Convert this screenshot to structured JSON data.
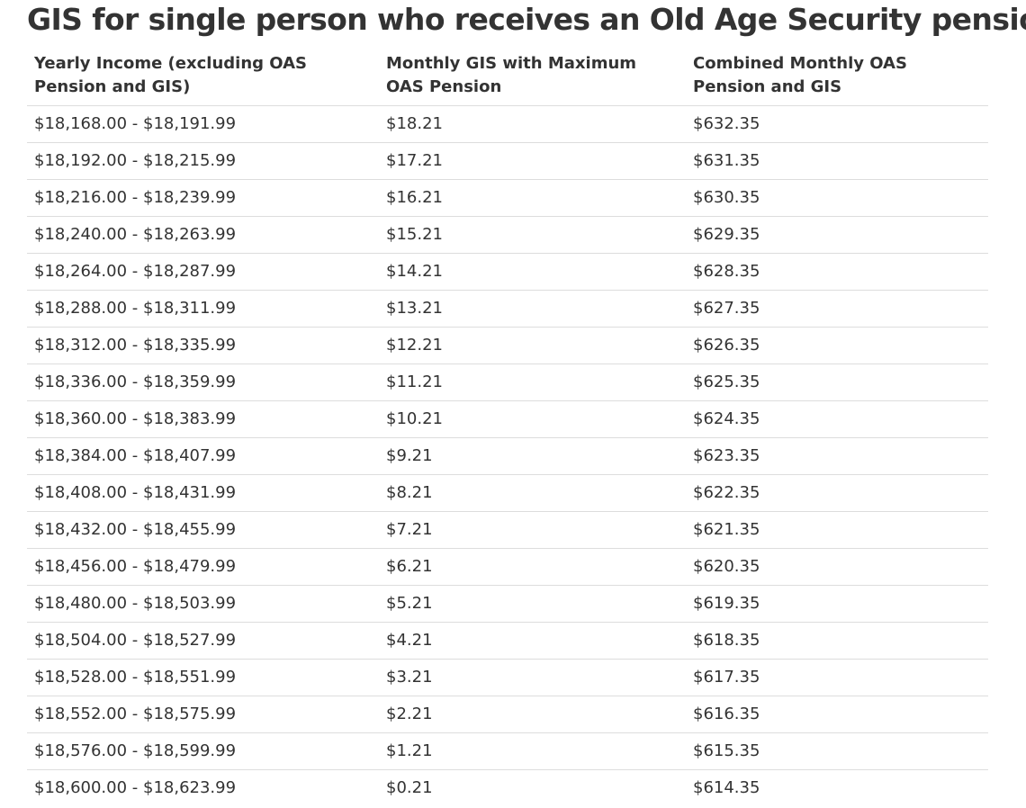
{
  "page": {
    "title": "GIS for single person who receives an Old Age Security pension"
  },
  "table": {
    "headers": [
      "Yearly Income (excluding OAS Pension and GIS)",
      "Monthly GIS with Maximum OAS Pension",
      "Combined Monthly OAS Pension and GIS"
    ],
    "rows": [
      [
        "$18,168.00 - $18,191.99",
        "$18.21",
        "$632.35"
      ],
      [
        "$18,192.00 - $18,215.99",
        "$17.21",
        "$631.35"
      ],
      [
        "$18,216.00 - $18,239.99",
        "$16.21",
        "$630.35"
      ],
      [
        "$18,240.00 - $18,263.99",
        "$15.21",
        "$629.35"
      ],
      [
        "$18,264.00 - $18,287.99",
        "$14.21",
        "$628.35"
      ],
      [
        "$18,288.00 - $18,311.99",
        "$13.21",
        "$627.35"
      ],
      [
        "$18,312.00 - $18,335.99",
        "$12.21",
        "$626.35"
      ],
      [
        "$18,336.00 - $18,359.99",
        "$11.21",
        "$625.35"
      ],
      [
        "$18,360.00 - $18,383.99",
        "$10.21",
        "$624.35"
      ],
      [
        "$18,384.00 - $18,407.99",
        "$9.21",
        "$623.35"
      ],
      [
        "$18,408.00 - $18,431.99",
        "$8.21",
        "$622.35"
      ],
      [
        "$18,432.00 - $18,455.99",
        "$7.21",
        "$621.35"
      ],
      [
        "$18,456.00 - $18,479.99",
        "$6.21",
        "$620.35"
      ],
      [
        "$18,480.00 - $18,503.99",
        "$5.21",
        "$619.35"
      ],
      [
        "$18,504.00 - $18,527.99",
        "$4.21",
        "$618.35"
      ],
      [
        "$18,528.00 - $18,551.99",
        "$3.21",
        "$617.35"
      ],
      [
        "$18,552.00 - $18,575.99",
        "$2.21",
        "$616.35"
      ],
      [
        "$18,576.00 - $18,599.99",
        "$1.21",
        "$615.35"
      ],
      [
        "$18,600.00 - $18,623.99",
        "$0.21",
        "$614.35"
      ]
    ]
  },
  "colors": {
    "text": "#333333",
    "row_border": "#dddddd",
    "background": "#ffffff"
  }
}
